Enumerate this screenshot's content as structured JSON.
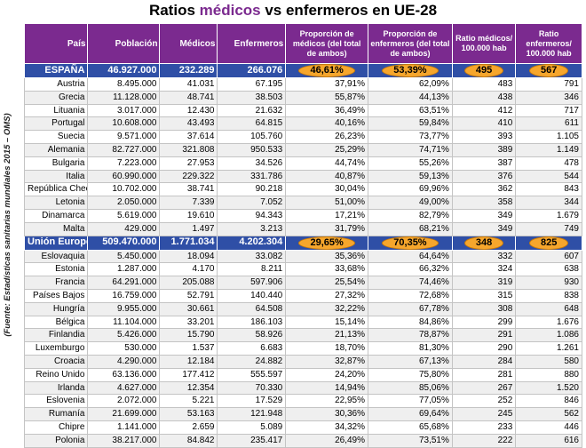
{
  "title": {
    "part1": "Ratios ",
    "part2": "médicos",
    "part3": " vs enfermeros en UE-28"
  },
  "source_note": "(Fuente: Estadísticas sanitarias mundiales 2015 – OMS)",
  "headers": [
    "País",
    "Población",
    "Médicos",
    "Enfermeros",
    "Proporción de médicos (del total de ambos)",
    "Proporción de enfermeros (del total de ambos)",
    "Ratio médicos/ 100.000 hab",
    "Ratio enfermeros/ 100.000 hab"
  ],
  "colors": {
    "header": "#7b2a8f",
    "aggregate_row": "#2f4fa6",
    "highlight_oval": "#f6a62c"
  },
  "spain": [
    "ESPAÑA",
    "46.927.000",
    "232.289",
    "266.076",
    "46,61%",
    "53,39%",
    "495",
    "567"
  ],
  "group1": [
    [
      "Austria",
      "8.495.000",
      "41.031",
      "67.195",
      "37,91%",
      "62,09%",
      "483",
      "791"
    ],
    [
      "Grecia",
      "11.128.000",
      "48.741",
      "38.503",
      "55,87%",
      "44,13%",
      "438",
      "346"
    ],
    [
      "Lituania",
      "3.017.000",
      "12.430",
      "21.632",
      "36,49%",
      "63,51%",
      "412",
      "717"
    ],
    [
      "Portugal",
      "10.608.000",
      "43.493",
      "64.815",
      "40,16%",
      "59,84%",
      "410",
      "611"
    ],
    [
      "Suecia",
      "9.571.000",
      "37.614",
      "105.760",
      "26,23%",
      "73,77%",
      "393",
      "1.105"
    ],
    [
      "Alemania",
      "82.727.000",
      "321.808",
      "950.533",
      "25,29%",
      "74,71%",
      "389",
      "1.149"
    ],
    [
      "Bulgaria",
      "7.223.000",
      "27.953",
      "34.526",
      "44,74%",
      "55,26%",
      "387",
      "478"
    ],
    [
      "Italia",
      "60.990.000",
      "229.322",
      "331.786",
      "40,87%",
      "59,13%",
      "376",
      "544"
    ],
    [
      "República Checa",
      "10.702.000",
      "38.741",
      "90.218",
      "30,04%",
      "69,96%",
      "362",
      "843"
    ],
    [
      "Letonia",
      "2.050.000",
      "7.339",
      "7.052",
      "51,00%",
      "49,00%",
      "358",
      "344"
    ],
    [
      "Dinamarca",
      "5.619.000",
      "19.610",
      "94.343",
      "17,21%",
      "82,79%",
      "349",
      "1.679"
    ],
    [
      "Malta",
      "429.000",
      "1.497",
      "3.213",
      "31,79%",
      "68,21%",
      "349",
      "749"
    ]
  ],
  "eu": [
    "Unión Europea",
    "509.470.000",
    "1.771.034",
    "4.202.304",
    "29,65%",
    "70,35%",
    "348",
    "825"
  ],
  "group2": [
    [
      "Eslovaquia",
      "5.450.000",
      "18.094",
      "33.082",
      "35,36%",
      "64,64%",
      "332",
      "607"
    ],
    [
      "Estonia",
      "1.287.000",
      "4.170",
      "8.211",
      "33,68%",
      "66,32%",
      "324",
      "638"
    ],
    [
      "Francia",
      "64.291.000",
      "205.088",
      "597.906",
      "25,54%",
      "74,46%",
      "319",
      "930"
    ],
    [
      "Países Bajos",
      "16.759.000",
      "52.791",
      "140.440",
      "27,32%",
      "72,68%",
      "315",
      "838"
    ],
    [
      "Hungría",
      "9.955.000",
      "30.661",
      "64.508",
      "32,22%",
      "67,78%",
      "308",
      "648"
    ],
    [
      "Bélgica",
      "11.104.000",
      "33.201",
      "186.103",
      "15,14%",
      "84,86%",
      "299",
      "1.676"
    ],
    [
      "Finlandia",
      "5.426.000",
      "15.790",
      "58.926",
      "21,13%",
      "78,87%",
      "291",
      "1.086"
    ],
    [
      "Luxemburgo",
      "530.000",
      "1.537",
      "6.683",
      "18,70%",
      "81,30%",
      "290",
      "1.261"
    ],
    [
      "Croacia",
      "4.290.000",
      "12.184",
      "24.882",
      "32,87%",
      "67,13%",
      "284",
      "580"
    ],
    [
      "Reino Unido",
      "63.136.000",
      "177.412",
      "555.597",
      "24,20%",
      "75,80%",
      "281",
      "880"
    ],
    [
      "Irlanda",
      "4.627.000",
      "12.354",
      "70.330",
      "14,94%",
      "85,06%",
      "267",
      "1.520"
    ],
    [
      "Eslovenia",
      "2.072.000",
      "5.221",
      "17.529",
      "22,95%",
      "77,05%",
      "252",
      "846"
    ],
    [
      "Rumanía",
      "21.699.000",
      "53.163",
      "121.948",
      "30,36%",
      "69,64%",
      "245",
      "562"
    ],
    [
      "Chipre",
      "1.141.000",
      "2.659",
      "5.089",
      "34,32%",
      "65,68%",
      "233",
      "446"
    ],
    [
      "Polonia",
      "38.217.000",
      "84.842",
      "235.417",
      "26,49%",
      "73,51%",
      "222",
      "616"
    ]
  ]
}
